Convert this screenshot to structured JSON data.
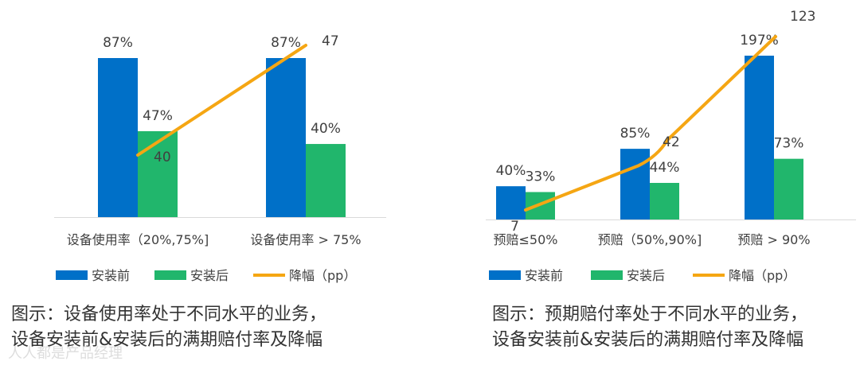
{
  "charts": [
    {
      "chart_data": {
        "type": "bar",
        "title": "",
        "categories": [
          "设备使用率（20%,75%]",
          "设备使用率 > 75%"
        ],
        "series": [
          {
            "name": "安装前",
            "kind": "bar",
            "values": [
              87,
              87
            ],
            "labels": [
              "87%",
              "87%"
            ],
            "color": "#0070C8"
          },
          {
            "name": "安装后",
            "kind": "bar",
            "values": [
              47,
              40
            ],
            "labels": [
              "47%",
              "40%"
            ],
            "color": "#21B66C"
          },
          {
            "name": "降幅（pp）",
            "kind": "line",
            "values": [
              40,
              47
            ],
            "labels": [
              "40",
              "47"
            ],
            "color": "#F5A613"
          }
        ],
        "ylim": [
          0,
          100
        ],
        "xlabel": "",
        "ylabel": "",
        "grid": false,
        "legend": "bottom"
      },
      "caption": [
        "图示：设备使用率处于不同水平的业务，",
        "设备安装前&安装后的满期赔付率及降幅"
      ]
    },
    {
      "chart_data": {
        "type": "bar",
        "title": "",
        "categories": [
          "预赔≤50%",
          "预赔（50%,90%]",
          "预赔 > 90%"
        ],
        "series": [
          {
            "name": "安装前",
            "kind": "bar",
            "values": [
              40,
              85,
              197
            ],
            "labels": [
              "40%",
              "85%",
              "197%"
            ],
            "color": "#0070C8"
          },
          {
            "name": "安装后",
            "kind": "bar",
            "values": [
              33,
              44,
              73
            ],
            "labels": [
              "33%",
              "44%",
              "73%"
            ],
            "color": "#21B66C"
          },
          {
            "name": "降幅（pp）",
            "kind": "line",
            "values": [
              7,
              42,
              123
            ],
            "labels": [
              "7",
              "42",
              "123"
            ],
            "color": "#F5A613"
          }
        ],
        "ylim": [
          0,
          220
        ],
        "xlabel": "",
        "ylabel": "",
        "grid": false,
        "legend": "bottom"
      },
      "caption": [
        "图示：预期赔付率处于不同水平的业务，",
        "设备安装前&安装后的满期赔付率及降幅"
      ]
    }
  ],
  "watermark": "人人都是产品经理"
}
